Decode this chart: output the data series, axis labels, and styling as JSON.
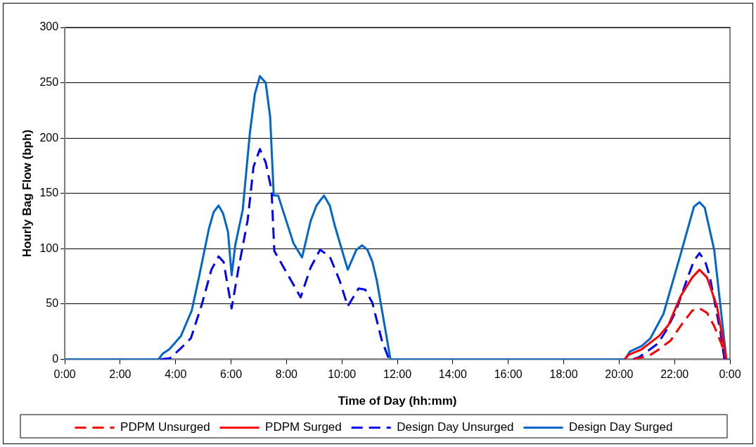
{
  "chart_data": {
    "type": "line",
    "xlabel": "Time of Day (hh:mm)",
    "ylabel": "Hourly Bag Flow (bph)",
    "xlim": [
      0,
      24
    ],
    "xticks": [
      {
        "value": 0,
        "label": "0:00"
      },
      {
        "value": 2,
        "label": "2:00"
      },
      {
        "value": 4,
        "label": "4:00"
      },
      {
        "value": 6,
        "label": "6:00"
      },
      {
        "value": 8,
        "label": "8:00"
      },
      {
        "value": 10,
        "label": "10:00"
      },
      {
        "value": 12,
        "label": "12:00"
      },
      {
        "value": 14,
        "label": "14:00"
      },
      {
        "value": 16,
        "label": "16:00"
      },
      {
        "value": 18,
        "label": "18:00"
      },
      {
        "value": 20,
        "label": "20:00"
      },
      {
        "value": 22,
        "label": "22:00"
      },
      {
        "value": 24,
        "label": "0:00"
      }
    ],
    "ylim": [
      0,
      300
    ],
    "yticks": [
      0,
      50,
      100,
      150,
      200,
      250,
      300
    ],
    "grid": "y",
    "legend": "bottom",
    "marker": "none",
    "series": [
      {
        "name": "PDPM Unsurged",
        "color": "#ff0000",
        "line_style": "dashed",
        "x": [
          20.5,
          20.73,
          21.13,
          21.44,
          21.86,
          22.3,
          22.64,
          22.9,
          23.17,
          23.43,
          23.69,
          23.87
        ],
        "values": [
          0,
          1,
          4,
          9,
          17,
          33,
          44,
          46,
          42,
          30,
          14,
          0
        ]
      },
      {
        "name": "PDPM Surged",
        "color": "#ff0000",
        "line_style": "solid",
        "x": [
          20.2,
          20.34,
          20.81,
          21.44,
          21.78,
          22.22,
          22.64,
          22.9,
          23.17,
          23.53,
          23.87
        ],
        "values": [
          0,
          4,
          9,
          21,
          31,
          57,
          74,
          81,
          74,
          48,
          0
        ]
      },
      {
        "name": "Design Day Unsurged",
        "color": "#0000ff",
        "line_style": "dashed",
        "x": [
          3.45,
          3.8,
          4.19,
          4.55,
          4.95,
          5.29,
          5.55,
          5.73,
          6.02,
          6.26,
          6.6,
          6.81,
          7.04,
          7.25,
          7.46,
          7.56,
          8.17,
          8.51,
          8.87,
          9.21,
          9.56,
          9.92,
          10.21,
          10.6,
          10.84,
          11.1,
          11.44,
          11.7,
          16,
          20.5,
          20.73,
          21.39,
          21.7,
          22.04,
          22.49,
          22.7,
          22.9,
          23.11,
          23.27,
          23.66,
          23.8
        ],
        "values": [
          0,
          1,
          10,
          19,
          50,
          81,
          93,
          88,
          46,
          81,
          126,
          174,
          190,
          178,
          153,
          98,
          71,
          56,
          83,
          99,
          93,
          71,
          48,
          64,
          63,
          51,
          17,
          0,
          null,
          0,
          2,
          14,
          26,
          43,
          75,
          89,
          96,
          88,
          75,
          24,
          0
        ]
      },
      {
        "name": "Design Day Surged",
        "color": "#0066cc",
        "line_style": "solid",
        "x": [
          0,
          3.38,
          3.53,
          3.77,
          4.19,
          4.58,
          4.84,
          5.2,
          5.37,
          5.55,
          5.71,
          5.89,
          6.02,
          6.15,
          6.42,
          6.68,
          6.86,
          7.04,
          7.25,
          7.41,
          7.54,
          7.7,
          7.98,
          8.25,
          8.56,
          8.87,
          9.08,
          9.35,
          9.56,
          9.74,
          10.21,
          10.52,
          10.73,
          10.92,
          11.1,
          11.26,
          11.75,
          20.21,
          20.39,
          20.81,
          21.13,
          21.6,
          22.22,
          22.7,
          22.9,
          23.09,
          23.43,
          23.87,
          24
        ],
        "values": [
          0,
          0,
          5,
          9,
          21,
          44,
          74,
          118,
          133,
          139,
          132,
          115,
          76,
          103,
          135,
          205,
          240,
          256,
          250,
          219,
          148,
          148,
          126,
          105,
          92,
          125,
          139,
          148,
          139,
          121,
          81,
          99,
          103,
          99,
          88,
          71,
          0,
          0,
          7,
          12,
          19,
          41,
          95,
          138,
          142,
          137,
          99,
          0,
          0
        ]
      }
    ]
  }
}
